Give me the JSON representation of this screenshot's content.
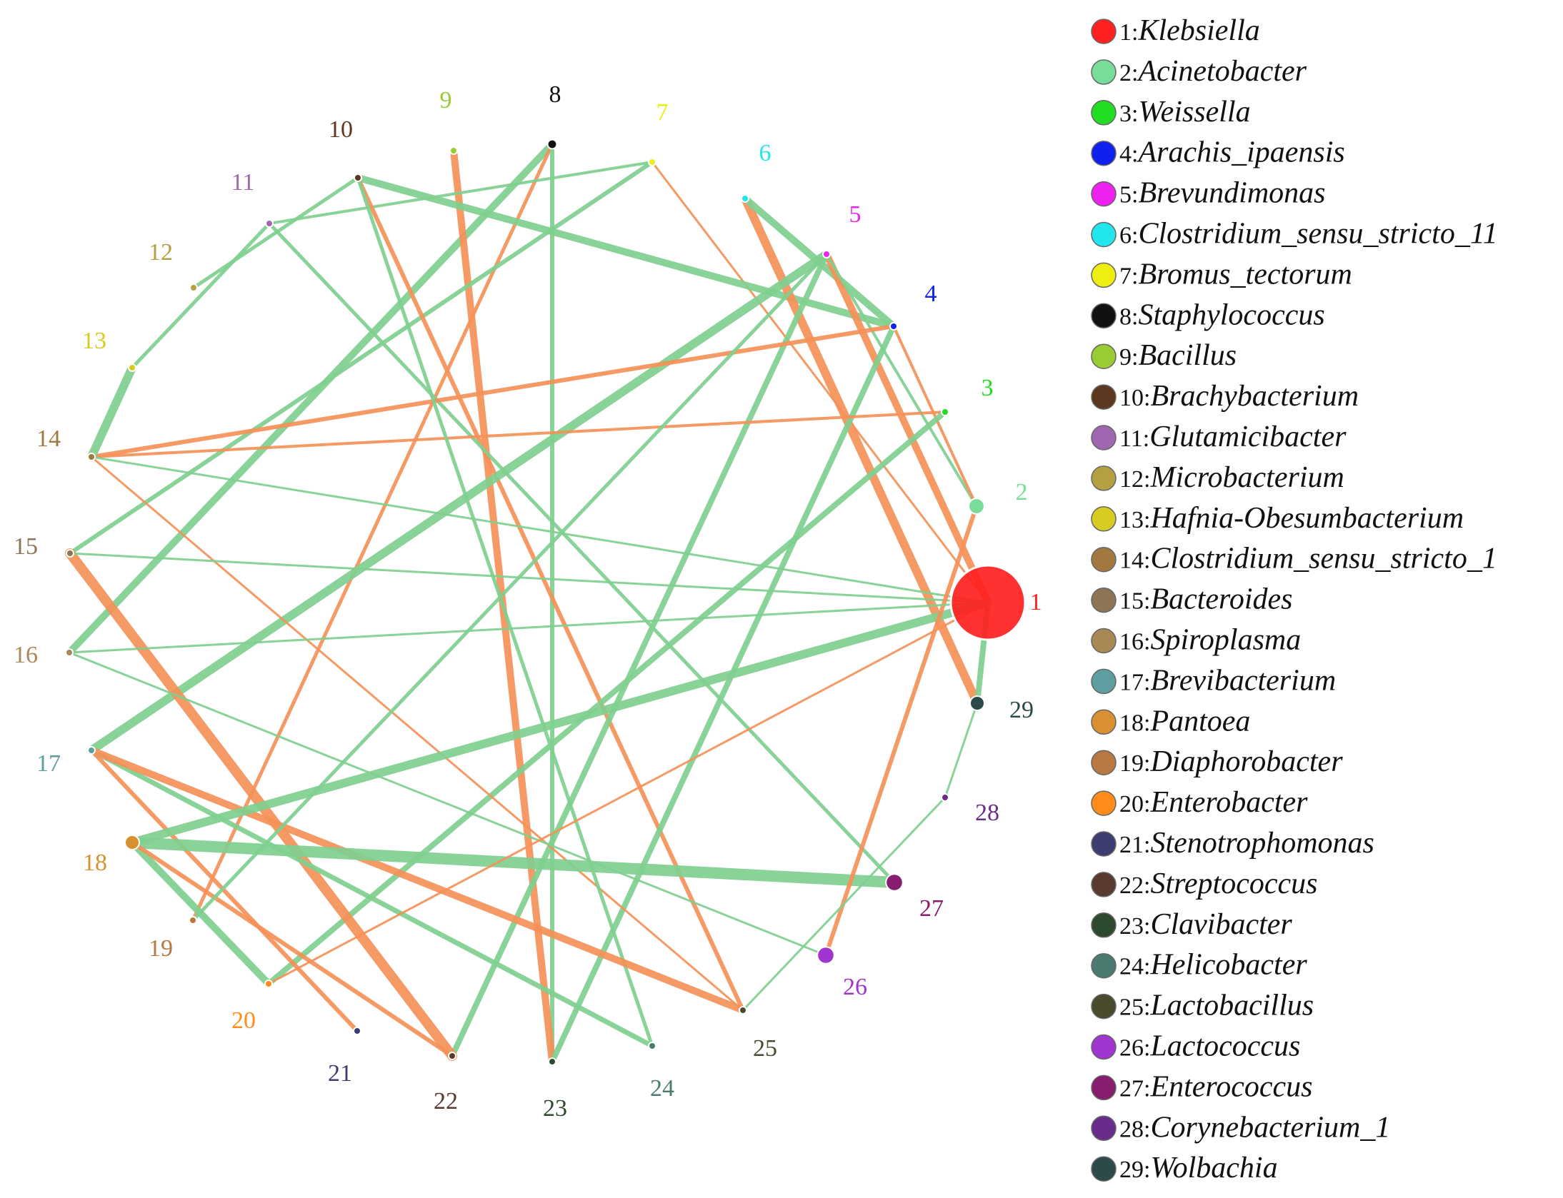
{
  "nodes": [
    {
      "id": 1,
      "name": "Klebsiella",
      "color": "#ff2020",
      "size": 10
    },
    {
      "id": 2,
      "name": "Acinetobacter",
      "color": "#77dd99",
      "size": 2.2
    },
    {
      "id": 3,
      "name": "Weissella",
      "color": "#22dd22",
      "size": 1
    },
    {
      "id": 4,
      "name": "Arachis_ipaensis",
      "color": "#1020ee",
      "size": 1
    },
    {
      "id": 5,
      "name": "Brevundimonas",
      "color": "#ee22ee",
      "size": 1
    },
    {
      "id": 6,
      "name": "Clostridium_sensu_stricto_11",
      "color": "#22e6ee",
      "size": 1
    },
    {
      "id": 7,
      "name": "Bromus_tectorum",
      "color": "#eeee10",
      "size": 1
    },
    {
      "id": 8,
      "name": "Staphylococcus",
      "color": "#111111",
      "size": 1.2
    },
    {
      "id": 9,
      "name": "Bacillus",
      "color": "#99cc33",
      "size": 1
    },
    {
      "id": 10,
      "name": "Brachybacterium",
      "color": "#5c3820",
      "size": 1
    },
    {
      "id": 11,
      "name": "Glutamicibacter",
      "color": "#a066b0",
      "size": 1
    },
    {
      "id": 12,
      "name": "Microbacterium",
      "color": "#b4a040",
      "size": 1
    },
    {
      "id": 13,
      "name": "Hafnia-Obesumbacterium",
      "color": "#d8cc22",
      "size": 1
    },
    {
      "id": 14,
      "name": "Clostridium_sensu_stricto_1",
      "color": "#a07840",
      "size": 1
    },
    {
      "id": 15,
      "name": "Bacteroides",
      "color": "#8c7455",
      "size": 1
    },
    {
      "id": 16,
      "name": "Spiroplasma",
      "color": "#a88855",
      "size": 1
    },
    {
      "id": 17,
      "name": "Brevibacterium",
      "color": "#5e9ea0",
      "size": 1
    },
    {
      "id": 18,
      "name": "Pantoea",
      "color": "#d89030",
      "size": 2
    },
    {
      "id": 19,
      "name": "Diaphorobacter",
      "color": "#b87840",
      "size": 1
    },
    {
      "id": 20,
      "name": "Enterobacter",
      "color": "#ff8c1a",
      "size": 1
    },
    {
      "id": 21,
      "name": "Stenotrophomonas",
      "color": "#3c3c70",
      "size": 1
    },
    {
      "id": 22,
      "name": "Streptococcus",
      "color": "#5a3a30",
      "size": 1
    },
    {
      "id": 23,
      "name": "Clavibacter",
      "color": "#2e4a2e",
      "size": 1
    },
    {
      "id": 24,
      "name": "Helicobacter",
      "color": "#4a7a70",
      "size": 1
    },
    {
      "id": 25,
      "name": "Lactobacillus",
      "color": "#4a4a2e",
      "size": 1
    },
    {
      "id": 26,
      "name": "Lactococcus",
      "color": "#a035d0",
      "size": 2.4
    },
    {
      "id": 27,
      "name": "Enterococcus",
      "color": "#861d6e",
      "size": 2.4
    },
    {
      "id": 28,
      "name": "Corynebacterium_1",
      "color": "#6a2c8c",
      "size": 1
    },
    {
      "id": 29,
      "name": "Wolbachia",
      "color": "#2c4a4a",
      "size": 2
    }
  ],
  "edges": [
    {
      "s": 8,
      "t": 16,
      "sign": "positive",
      "w": 10
    },
    {
      "s": 8,
      "t": 19,
      "sign": "negative",
      "w": 5
    },
    {
      "s": 8,
      "t": 23,
      "sign": "positive",
      "w": 6
    },
    {
      "s": 9,
      "t": 23,
      "sign": "negative",
      "w": 10
    },
    {
      "s": 7,
      "t": 11,
      "sign": "positive",
      "w": 4
    },
    {
      "s": 7,
      "t": 15,
      "sign": "positive",
      "w": 6
    },
    {
      "s": 7,
      "t": 1,
      "sign": "negative",
      "w": 3
    },
    {
      "s": 10,
      "t": 12,
      "sign": "positive",
      "w": 5
    },
    {
      "s": 10,
      "t": 4,
      "sign": "positive",
      "w": 10
    },
    {
      "s": 10,
      "t": 25,
      "sign": "negative",
      "w": 6
    },
    {
      "s": 11,
      "t": 13,
      "sign": "positive",
      "w": 5
    },
    {
      "s": 11,
      "t": 27,
      "sign": "positive",
      "w": 5
    },
    {
      "s": 6,
      "t": 29,
      "sign": "negative",
      "w": 12
    },
    {
      "s": 6,
      "t": 4,
      "sign": "positive",
      "w": 10
    },
    {
      "s": 5,
      "t": 1,
      "sign": "negative",
      "w": 10
    },
    {
      "s": 5,
      "t": 2,
      "sign": "positive",
      "w": 4
    },
    {
      "s": 5,
      "t": 17,
      "sign": "positive",
      "w": 12
    },
    {
      "s": 5,
      "t": 22,
      "sign": "positive",
      "w": 8
    },
    {
      "s": 4,
      "t": 14,
      "sign": "negative",
      "w": 6
    },
    {
      "s": 4,
      "t": 2,
      "sign": "negative",
      "w": 4
    },
    {
      "s": 4,
      "t": 23,
      "sign": "positive",
      "w": 8
    },
    {
      "s": 3,
      "t": 14,
      "sign": "negative",
      "w": 4
    },
    {
      "s": 3,
      "t": 20,
      "sign": "positive",
      "w": 8
    },
    {
      "s": 13,
      "t": 14,
      "sign": "positive",
      "w": 12
    },
    {
      "s": 14,
      "t": 1,
      "sign": "positive",
      "w": 3
    },
    {
      "s": 14,
      "t": 25,
      "sign": "negative",
      "w": 3
    },
    {
      "s": 15,
      "t": 22,
      "sign": "negative",
      "w": 14
    },
    {
      "s": 15,
      "t": 1,
      "sign": "positive",
      "w": 3
    },
    {
      "s": 16,
      "t": 26,
      "sign": "positive",
      "w": 3
    },
    {
      "s": 10,
      "t": 24,
      "sign": "positive",
      "w": 5
    },
    {
      "s": 17,
      "t": 21,
      "sign": "negative",
      "w": 6
    },
    {
      "s": 17,
      "t": 24,
      "sign": "positive",
      "w": 7
    },
    {
      "s": 17,
      "t": 25,
      "sign": "negative",
      "w": 10
    },
    {
      "s": 18,
      "t": 1,
      "sign": "positive",
      "w": 12
    },
    {
      "s": 18,
      "t": 27,
      "sign": "positive",
      "w": 16
    },
    {
      "s": 18,
      "t": 20,
      "sign": "positive",
      "w": 10
    },
    {
      "s": 18,
      "t": 22,
      "sign": "negative",
      "w": 6
    },
    {
      "s": 20,
      "t": 1,
      "sign": "negative",
      "w": 3
    },
    {
      "s": 2,
      "t": 26,
      "sign": "negative",
      "w": 6
    },
    {
      "s": 1,
      "t": 29,
      "sign": "positive",
      "w": 8
    },
    {
      "s": 29,
      "t": 28,
      "sign": "positive",
      "w": 3
    },
    {
      "s": 28,
      "t": 25,
      "sign": "positive",
      "w": 3
    },
    {
      "s": 19,
      "t": 5,
      "sign": "positive",
      "w": 5
    },
    {
      "s": 16,
      "t": 1,
      "sign": "positive",
      "w": 3
    }
  ]
}
